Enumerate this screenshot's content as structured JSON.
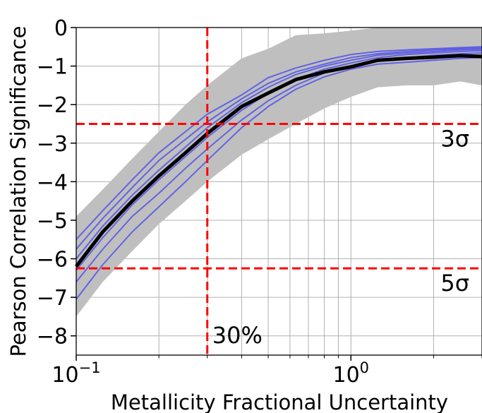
{
  "chart_data": {
    "type": "line",
    "x_scale": "log",
    "xlim": [
      0.1,
      3.0
    ],
    "ylim": [
      -8.5,
      0
    ],
    "grid": true,
    "xlabel": "Metallicity Fractional Uncertainty",
    "ylabel": "Pearson Correlation Significance",
    "x_ticks": [
      {
        "value": 0.1,
        "label": "10",
        "exp": "−1"
      },
      {
        "value": 1.0,
        "label": "10",
        "exp": "0"
      }
    ],
    "y_ticks": [
      {
        "value": 0,
        "label": "0"
      },
      {
        "value": -1,
        "label": "−1"
      },
      {
        "value": -2,
        "label": "−2"
      },
      {
        "value": -3,
        "label": "−3"
      },
      {
        "value": -4,
        "label": "−4"
      },
      {
        "value": -5,
        "label": "−5"
      },
      {
        "value": -6,
        "label": "−6"
      },
      {
        "value": -7,
        "label": "−7"
      },
      {
        "value": -8,
        "label": "−8"
      }
    ],
    "band": {
      "color": "#bfbfbf",
      "x": [
        0.1,
        0.125,
        0.16,
        0.2,
        0.25,
        0.3,
        0.4,
        0.5,
        0.63,
        0.8,
        1.0,
        1.25,
        1.6,
        2.0,
        2.5,
        3.0
      ],
      "upper": [
        -4.9,
        -4.2,
        -3.4,
        -2.7,
        -2.0,
        -1.5,
        -0.8,
        -0.55,
        -0.2,
        -0.15,
        -0.08,
        0.0,
        0.0,
        0.0,
        0.0,
        0.0
      ],
      "lower": [
        -7.5,
        -6.6,
        -5.8,
        -5.1,
        -4.5,
        -4.0,
        -3.3,
        -2.9,
        -2.5,
        -2.1,
        -1.8,
        -1.55,
        -1.5,
        -1.5,
        -1.4,
        -1.5
      ]
    },
    "median": {
      "color": "#000000",
      "x": [
        0.1,
        0.125,
        0.16,
        0.2,
        0.25,
        0.3,
        0.4,
        0.5,
        0.63,
        0.8,
        1.0,
        1.25,
        1.6,
        2.0,
        2.5,
        3.0
      ],
      "y": [
        -6.2,
        -5.3,
        -4.5,
        -3.85,
        -3.25,
        -2.75,
        -2.05,
        -1.7,
        -1.35,
        -1.15,
        -1.02,
        -0.85,
        -0.8,
        -0.77,
        -0.73,
        -0.75
      ]
    },
    "series": [
      {
        "color": "#4444ee",
        "x": [
          0.1,
          0.125,
          0.16,
          0.2,
          0.25,
          0.3,
          0.4,
          0.5,
          0.63,
          0.8,
          1.0,
          1.25,
          1.6,
          2.0,
          2.5,
          3.0
        ],
        "y": [
          -5.5,
          -4.75,
          -3.95,
          -3.25,
          -2.7,
          -2.25,
          -1.75,
          -1.3,
          -1.05,
          -0.85,
          -0.7,
          -0.62,
          -0.58,
          -0.55,
          -0.52,
          -0.5
        ]
      },
      {
        "color": "#4444ee",
        "x": [
          0.1,
          0.125,
          0.16,
          0.2,
          0.25,
          0.3,
          0.4,
          0.5,
          0.63,
          0.8,
          1.0,
          1.25,
          1.6,
          2.0,
          2.5,
          3.0
        ],
        "y": [
          -5.75,
          -4.95,
          -4.15,
          -3.45,
          -2.9,
          -2.45,
          -1.85,
          -1.45,
          -1.15,
          -0.95,
          -0.78,
          -0.68,
          -0.62,
          -0.58,
          -0.55,
          -0.53
        ]
      },
      {
        "color": "#4444ee",
        "x": [
          0.1,
          0.125,
          0.16,
          0.2,
          0.25,
          0.3,
          0.4,
          0.5,
          0.63,
          0.8,
          1.0,
          1.25,
          1.6,
          2.0,
          2.5,
          3.0
        ],
        "y": [
          -6.0,
          -5.15,
          -4.35,
          -3.7,
          -3.1,
          -2.6,
          -1.95,
          -1.55,
          -1.22,
          -1.0,
          -0.85,
          -0.72,
          -0.66,
          -0.62,
          -0.58,
          -0.56
        ]
      },
      {
        "color": "#4444ee",
        "x": [
          0.1,
          0.125,
          0.16,
          0.2,
          0.25,
          0.3,
          0.4,
          0.5,
          0.63,
          0.8,
          1.0,
          1.25,
          1.6,
          2.0,
          2.5,
          3.0
        ],
        "y": [
          -6.3,
          -5.45,
          -4.6,
          -3.95,
          -3.35,
          -2.85,
          -2.15,
          -1.7,
          -1.35,
          -1.08,
          -0.92,
          -0.78,
          -0.7,
          -0.66,
          -0.62,
          -0.6
        ]
      },
      {
        "color": "#4444ee",
        "x": [
          0.1,
          0.125,
          0.16,
          0.2,
          0.25,
          0.3,
          0.4,
          0.5,
          0.63,
          0.8,
          1.0,
          1.25,
          1.6,
          2.0,
          2.5,
          3.0
        ],
        "y": [
          -6.6,
          -5.75,
          -4.9,
          -4.3,
          -3.65,
          -3.15,
          -2.4,
          -1.9,
          -1.5,
          -1.18,
          -1.0,
          -0.85,
          -0.78,
          -0.72,
          -0.68,
          -0.66
        ]
      },
      {
        "color": "#4444ee",
        "x": [
          0.1,
          0.125,
          0.16,
          0.2,
          0.25,
          0.3,
          0.4,
          0.5,
          0.63,
          0.8,
          1.0,
          1.25,
          1.6,
          2.0,
          2.5,
          3.0
        ],
        "y": [
          -7.05,
          -6.15,
          -5.3,
          -4.65,
          -4.0,
          -3.45,
          -2.6,
          -2.05,
          -1.6,
          -1.28,
          -1.08,
          -0.95,
          -0.9,
          -0.85,
          -0.8,
          -0.78
        ]
      }
    ],
    "annotations": {
      "h_lines": [
        {
          "value": -2.5,
          "label": "3σ",
          "color": "#ff0000"
        },
        {
          "value": -6.25,
          "label": "5σ",
          "color": "#ff0000"
        }
      ],
      "v_lines": [
        {
          "value": 0.3,
          "label": "30%",
          "color": "#ff0000"
        }
      ]
    }
  }
}
